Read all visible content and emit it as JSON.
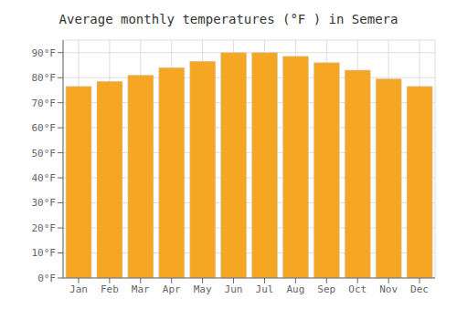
{
  "chart_data": {
    "type": "bar",
    "title": "Average monthly temperatures (°F ) in Semera",
    "categories": [
      "Jan",
      "Feb",
      "Mar",
      "Apr",
      "May",
      "Jun",
      "Jul",
      "Aug",
      "Sep",
      "Oct",
      "Nov",
      "Dec"
    ],
    "values": [
      76.5,
      78.5,
      81,
      84,
      86.5,
      90,
      90,
      88.5,
      86,
      83,
      79.5,
      76.5
    ],
    "color": "#F5A623",
    "ylim": [
      0,
      95
    ],
    "yticks": [
      {
        "value": 0,
        "label": "0°F"
      },
      {
        "value": 10,
        "label": "10°F"
      },
      {
        "value": 20,
        "label": "20°F"
      },
      {
        "value": 30,
        "label": "30°F"
      },
      {
        "value": 40,
        "label": "40°F"
      },
      {
        "value": 50,
        "label": "50°F"
      },
      {
        "value": 60,
        "label": "60°F"
      },
      {
        "value": 70,
        "label": "70°F"
      },
      {
        "value": 80,
        "label": "80°F"
      },
      {
        "value": 90,
        "label": "90°F"
      }
    ],
    "grid": true
  }
}
